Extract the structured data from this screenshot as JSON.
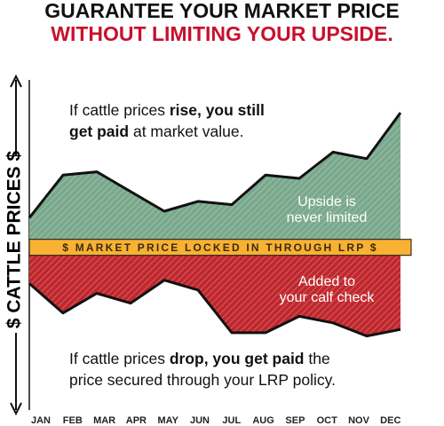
{
  "chart_data": {
    "type": "line",
    "title": "GUARANTEE YOUR MARKET PRICE",
    "subtitle": "WITHOUT LIMITING YOUR UPSIDE.",
    "title_color": "#111111",
    "subtitle_color": "#c8102e",
    "ylabel": "$ CATTLE PRICES $",
    "categories": [
      "JAN",
      "FEB",
      "MAR",
      "APR",
      "MAY",
      "JUN",
      "JUL",
      "AUG",
      "SEP",
      "OCT",
      "NOV",
      "DEC"
    ],
    "ylim": [
      0,
      100
    ],
    "locked_price": {
      "value": 49,
      "label": "$ MARKET PRICE LOCKED IN THROUGH LRP $",
      "color": "#f8b133"
    },
    "series": [
      {
        "color": "#7aa88c",
        "values": [
          58,
          71,
          72,
          66,
          60,
          63,
          62,
          71,
          70,
          78,
          76,
          90
        ],
        "area_label": [
          "Upside is",
          "never limited"
        ]
      },
      {
        "color": "#c0272d",
        "values": [
          38,
          29,
          35,
          32,
          39,
          36,
          23,
          23,
          28,
          26,
          22,
          24
        ],
        "area_label": [
          "Added to",
          "your calf check"
        ]
      }
    ],
    "annotations": [
      [
        [
          {
            "text": "If cattle prices ",
            "bold": false
          },
          {
            "text": "rise, you still",
            "bold": true
          }
        ],
        [
          {
            "text": "get paid",
            "bold": true
          },
          {
            "text": " at market value.",
            "bold": false
          }
        ]
      ],
      [
        [
          {
            "text": "If cattle prices ",
            "bold": false
          },
          {
            "text": "drop, you get paid",
            "bold": true
          },
          {
            "text": " the",
            "bold": false
          }
        ],
        [
          {
            "text": "price secured through your LRP policy.",
            "bold": false
          }
        ]
      ]
    ]
  }
}
